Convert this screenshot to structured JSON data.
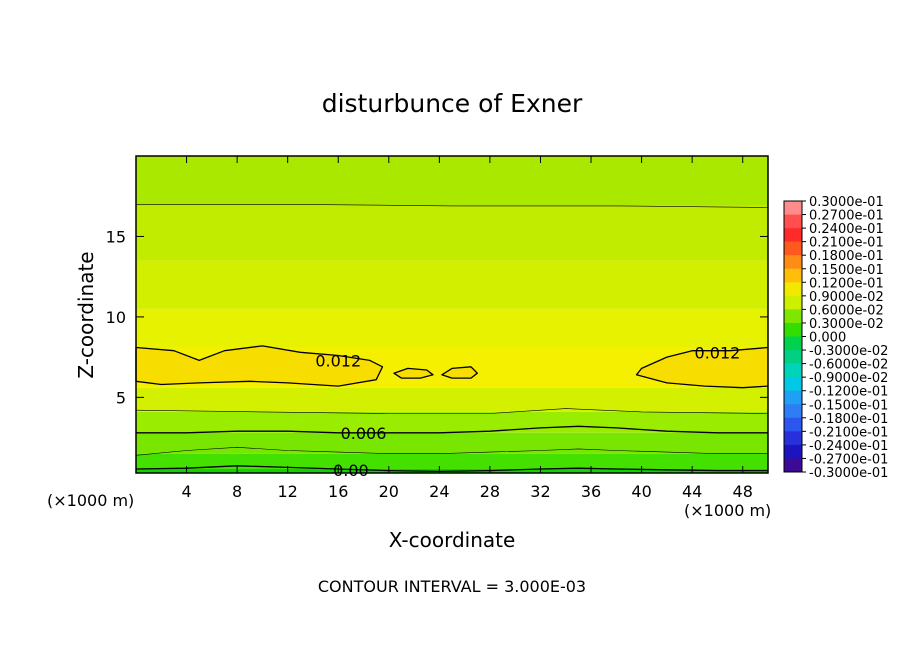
{
  "chart_data": {
    "type": "heatmap",
    "title": "disturbunce of Exner",
    "xlabel": "X-coordinate",
    "ylabel": "Z-coordinate",
    "x_unit": "(×1000 m)",
    "xlim": [
      0,
      50
    ],
    "ylim": [
      0.3,
      20
    ],
    "x_ticks": [
      4,
      8,
      12,
      16,
      20,
      24,
      28,
      32,
      36,
      40,
      44,
      48
    ],
    "y_ticks": [
      5,
      10,
      15
    ],
    "contour_interval_text": "CONTOUR INTERVAL = 3.000E-03",
    "contour_labels": [
      {
        "text": "0.012",
        "x": 16,
        "z": 7.3
      },
      {
        "text": "0.012",
        "x": 46,
        "z": 7.8
      },
      {
        "text": "0.006",
        "x": 18,
        "z": 2.8
      },
      {
        "text": "0.00",
        "x": 17,
        "z": 0.5
      }
    ],
    "contour_lines": [
      {
        "level": 0.012,
        "points": [
          [
            0,
            8.1
          ],
          [
            3,
            7.9
          ],
          [
            5,
            7.3
          ],
          [
            7,
            7.9
          ],
          [
            10,
            8.2
          ],
          [
            13,
            7.8
          ],
          [
            16,
            7.6
          ],
          [
            18.5,
            7.3
          ],
          [
            19.5,
            6.9
          ],
          [
            19,
            6.1
          ],
          [
            16,
            5.7
          ],
          [
            12,
            5.9
          ],
          [
            9,
            6.0
          ],
          [
            5,
            5.9
          ],
          [
            2,
            5.8
          ],
          [
            0,
            6.0
          ]
        ]
      },
      {
        "level": 0.012,
        "closed": true,
        "points": [
          [
            20.4,
            6.5
          ],
          [
            21.5,
            6.8
          ],
          [
            23,
            6.7
          ],
          [
            23.5,
            6.4
          ],
          [
            22.5,
            6.2
          ],
          [
            21,
            6.2
          ]
        ]
      },
      {
        "level": 0.012,
        "closed": true,
        "points": [
          [
            24.2,
            6.4
          ],
          [
            25,
            6.8
          ],
          [
            26.5,
            6.9
          ],
          [
            27,
            6.5
          ],
          [
            26.5,
            6.2
          ],
          [
            25,
            6.2
          ]
        ]
      },
      {
        "level": 0.012,
        "points": [
          [
            50,
            8.1
          ],
          [
            47,
            7.9
          ],
          [
            44,
            7.9
          ],
          [
            42,
            7.5
          ],
          [
            40,
            6.8
          ],
          [
            39.6,
            6.4
          ],
          [
            42,
            5.9
          ],
          [
            45,
            5.7
          ],
          [
            48,
            5.6
          ],
          [
            50,
            5.7
          ]
        ]
      },
      {
        "level": 0.006,
        "points": [
          [
            0,
            2.8
          ],
          [
            4,
            2.8
          ],
          [
            8,
            2.9
          ],
          [
            12,
            2.9
          ],
          [
            16,
            2.8
          ],
          [
            20,
            2.8
          ],
          [
            24,
            2.8
          ],
          [
            28,
            2.9
          ],
          [
            32,
            3.1
          ],
          [
            35,
            3.2
          ],
          [
            38,
            3.1
          ],
          [
            42,
            2.9
          ],
          [
            46,
            2.8
          ],
          [
            50,
            2.8
          ]
        ]
      },
      {
        "level": 0.003,
        "points": [
          [
            0,
            1.4
          ],
          [
            4,
            1.7
          ],
          [
            8,
            1.9
          ],
          [
            12,
            1.7
          ],
          [
            16,
            1.6
          ],
          [
            20,
            1.5
          ],
          [
            24,
            1.5
          ],
          [
            28,
            1.6
          ],
          [
            32,
            1.7
          ],
          [
            35,
            1.8
          ],
          [
            38,
            1.7
          ],
          [
            42,
            1.6
          ],
          [
            46,
            1.5
          ],
          [
            50,
            1.5
          ]
        ]
      },
      {
        "level": 0.0,
        "points": [
          [
            0,
            0.55
          ],
          [
            4,
            0.6
          ],
          [
            8,
            0.75
          ],
          [
            12,
            0.65
          ],
          [
            16,
            0.55
          ],
          [
            20,
            0.45
          ],
          [
            24,
            0.4
          ],
          [
            28,
            0.45
          ],
          [
            32,
            0.55
          ],
          [
            35,
            0.6
          ],
          [
            38,
            0.55
          ],
          [
            42,
            0.5
          ],
          [
            46,
            0.45
          ],
          [
            50,
            0.45
          ]
        ]
      },
      {
        "level": 0.009,
        "points": [
          [
            0,
            4.2
          ],
          [
            10,
            4.1
          ],
          [
            20,
            4.0
          ],
          [
            28,
            4.0
          ],
          [
            34,
            4.3
          ],
          [
            40,
            4.1
          ],
          [
            50,
            4.0
          ]
        ]
      },
      {
        "level": 0.009,
        "points": [
          [
            0,
            17.0
          ],
          [
            12,
            17.0
          ],
          [
            25,
            16.9
          ],
          [
            38,
            16.9
          ],
          [
            50,
            16.8
          ]
        ]
      }
    ],
    "colorbar": {
      "labels": [
        "0.3000e-01",
        "0.2700e-01",
        "0.2400e-01",
        "0.2100e-01",
        "0.1800e-01",
        "0.1500e-01",
        "0.1200e-01",
        "0.9000e-02",
        "0.6000e-02",
        "0.3000e-02",
        "0.000",
        "-0.3000e-02",
        "-0.6000e-02",
        "-0.9000e-02",
        "-0.1200e-01",
        "-0.1500e-01",
        "-0.1800e-01",
        "-0.2100e-01",
        "-0.2400e-01",
        "-0.2700e-01",
        "-0.3000e-01"
      ],
      "colors": [
        "#ff8c8c",
        "#ff4f4f",
        "#ff2a2a",
        "#ff5a1e",
        "#ff8c14",
        "#ffbe0a",
        "#f2e800",
        "#cdf000",
        "#7ee600",
        "#33dd00",
        "#00d24e",
        "#00cf84",
        "#00d4b8",
        "#00c8e6",
        "#1fa0f5",
        "#2e7df5",
        "#2d55f0",
        "#2830dc",
        "#1e14be",
        "#3c0a96"
      ]
    },
    "field_bands": [
      {
        "z0": 0.3,
        "z1": 0.55,
        "color": "#10d200"
      },
      {
        "z0": 0.55,
        "z1": 1.5,
        "color": "#44e100"
      },
      {
        "z0": 1.5,
        "z1": 2.8,
        "color": "#78e600"
      },
      {
        "z0": 2.8,
        "z1": 4.1,
        "color": "#9aec00"
      },
      {
        "z0": 4.1,
        "z1": 5.6,
        "color": "#d2f000"
      },
      {
        "z0": 5.6,
        "z1": 8.1,
        "color": "#f4f000"
      },
      {
        "z0": 8.1,
        "z1": 10.5,
        "color": "#e6f200"
      },
      {
        "z0": 10.5,
        "z1": 13.5,
        "color": "#d2ef00"
      },
      {
        "z0": 13.5,
        "z1": 16.9,
        "color": "#c1ec00"
      },
      {
        "z0": 16.9,
        "z1": 20,
        "color": "#abe800"
      }
    ],
    "band_max_color": "#f7de00"
  }
}
